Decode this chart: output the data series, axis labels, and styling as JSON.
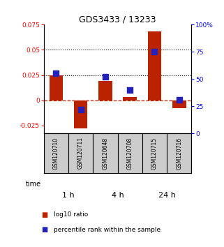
{
  "title": "GDS3433 / 13233",
  "samples": [
    "GSM120710",
    "GSM120711",
    "GSM120648",
    "GSM120708",
    "GSM120715",
    "GSM120716"
  ],
  "time_groups": [
    {
      "label": "1 h",
      "indices": [
        0,
        1
      ],
      "color": "#c0f0c0"
    },
    {
      "label": "4 h",
      "indices": [
        2,
        3
      ],
      "color": "#80e080"
    },
    {
      "label": "24 h",
      "indices": [
        4,
        5
      ],
      "color": "#40cc40"
    }
  ],
  "log10_ratio": [
    0.025,
    -0.028,
    0.019,
    0.003,
    0.068,
    -0.008
  ],
  "percentile_rank": [
    0.55,
    0.22,
    0.52,
    0.4,
    0.75,
    0.31
  ],
  "bar_color": "#bb2200",
  "dot_color": "#2222bb",
  "ylim_left": [
    -0.033,
    0.075
  ],
  "ylim_right": [
    0.0,
    1.0
  ],
  "yticks_left": [
    -0.025,
    0.0,
    0.025,
    0.05,
    0.075
  ],
  "ytick_labels_left": [
    "-0.025",
    "0",
    "0.025",
    "0.05",
    "0.075"
  ],
  "yticks_right": [
    0.0,
    0.25,
    0.5,
    0.75,
    1.0
  ],
  "ytick_labels_right": [
    "0",
    "25",
    "50",
    "75",
    "100%"
  ],
  "hlines": [
    0.025,
    0.05
  ],
  "bar_width": 0.55,
  "dot_size": 35,
  "legend_items": [
    {
      "label": "log10 ratio",
      "color": "#bb2200"
    },
    {
      "label": "percentile rank within the sample",
      "color": "#2222bb"
    }
  ],
  "background_color": "#ffffff",
  "sample_box_color": "#cccccc"
}
